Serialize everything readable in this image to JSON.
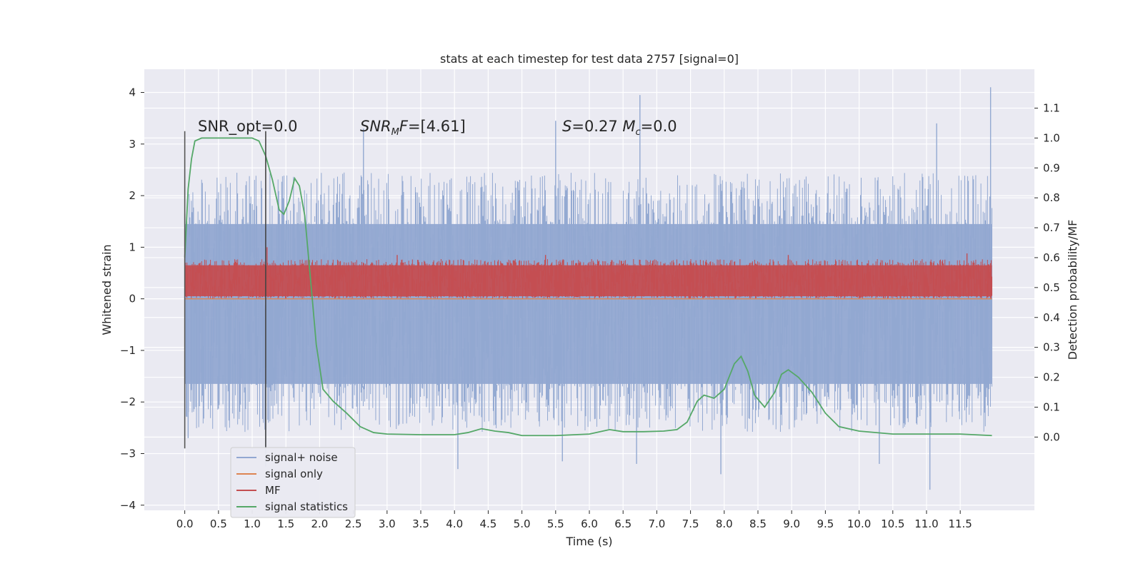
{
  "chart_data": {
    "type": "line",
    "title": "stats at each timestep for test data 2757 [signal=0]",
    "xlabel": "Time (s)",
    "ylabel": "Whitened strain",
    "y2label": "Detection probability/MF",
    "xlim": [
      -0.6,
      12.6
    ],
    "ylim": [
      -4.1,
      4.45
    ],
    "y2lim": [
      -0.245,
      1.23
    ],
    "x_ticks": [
      0.0,
      0.5,
      1.0,
      1.5,
      2.0,
      2.5,
      3.0,
      3.5,
      4.0,
      4.5,
      5.0,
      5.5,
      6.0,
      6.5,
      7.0,
      7.5,
      8.0,
      8.5,
      9.0,
      9.5,
      10.0,
      10.5,
      11.0,
      11.5
    ],
    "x_tick_labels": [
      "0.0",
      "0.5",
      "1.0",
      "1.5",
      "2.0",
      "2.5",
      "3.0",
      "3.5",
      "4.0",
      "4.5",
      "5.0",
      "5.5",
      "6.0",
      "6.5",
      "7.0",
      "7.5",
      "8.0",
      "8.5",
      "9.0",
      "9.5",
      "10.0",
      "10.5",
      "11.0",
      "11.5"
    ],
    "y_ticks": [
      4,
      3,
      2,
      1,
      0,
      -1,
      -2,
      -3,
      -4
    ],
    "y_tick_labels": [
      "4",
      "3",
      "2",
      "1",
      "0",
      "−1",
      "−2",
      "−3",
      "−4"
    ],
    "y2_ticks": [
      1.1,
      1.0,
      0.9,
      0.8,
      0.7,
      0.6,
      0.5,
      0.4,
      0.3,
      0.2,
      0.1,
      0.0
    ],
    "y2_tick_labels": [
      "1.1",
      "1.0",
      "0.9",
      "0.8",
      "0.7",
      "0.6",
      "0.5",
      "0.4",
      "0.3",
      "0.2",
      "0.1",
      "0.0"
    ],
    "grid": true,
    "legend_position": "lower-left",
    "background": "#eaeaf2",
    "annotations": [
      {
        "text": "SNR_opt=0.0",
        "x": 0.2,
        "y": 3.3
      },
      {
        "text": "SNR_MF=[4.61]",
        "x": 2.6,
        "y": 3.3
      },
      {
        "text": "S=0.27   M_c=0.0",
        "x": 5.6,
        "y": 3.3
      }
    ],
    "vertical_markers": [
      {
        "x": 0.0,
        "y_range": [
          -2.9,
          3.25
        ],
        "color": "#555555"
      },
      {
        "x": 1.2,
        "y_range": [
          -2.9,
          3.25
        ],
        "color": "#444444"
      }
    ],
    "series": [
      {
        "name": "signal+ noise",
        "axis": "left",
        "color": "#92a8d1",
        "kind": "noise-band",
        "x_range": [
          0.0,
          11.97
        ],
        "core_range": [
          -1.65,
          1.45
        ],
        "peak_points": [
          [
            0.0,
            1.65
          ],
          [
            0.05,
            -2.7
          ],
          [
            1.2,
            -3.25
          ],
          [
            2.65,
            3.3
          ],
          [
            4.05,
            -3.3
          ],
          [
            5.5,
            3.45
          ],
          [
            5.6,
            -3.15
          ],
          [
            6.75,
            3.95
          ],
          [
            6.7,
            -3.2
          ],
          [
            7.95,
            -3.4
          ],
          [
            10.3,
            -3.2
          ],
          [
            11.05,
            -3.7
          ],
          [
            11.15,
            3.4
          ],
          [
            11.95,
            4.1
          ]
        ]
      },
      {
        "name": "signal only",
        "axis": "left",
        "color": "#dd8452",
        "points": [
          [
            0.0,
            0.0
          ],
          [
            11.97,
            0.0
          ]
        ]
      },
      {
        "name": "MF",
        "axis": "left",
        "color": "#c44e52",
        "kind": "noise-band",
        "x_range": [
          0.0,
          11.97
        ],
        "core_range": [
          0.05,
          0.65
        ],
        "peak_points": [
          [
            1.22,
            1.0
          ],
          [
            3.15,
            0.85
          ],
          [
            5.35,
            0.85
          ],
          [
            8.95,
            0.85
          ],
          [
            11.6,
            0.88
          ]
        ]
      },
      {
        "name": "signal statistics",
        "axis": "right",
        "color": "#55a868",
        "points": [
          [
            0.0,
            0.6
          ],
          [
            0.05,
            0.83
          ],
          [
            0.1,
            0.93
          ],
          [
            0.15,
            0.99
          ],
          [
            0.25,
            1.0
          ],
          [
            0.6,
            1.0
          ],
          [
            0.9,
            1.0
          ],
          [
            1.0,
            1.0
          ],
          [
            1.1,
            0.99
          ],
          [
            1.2,
            0.94
          ],
          [
            1.3,
            0.86
          ],
          [
            1.4,
            0.76
          ],
          [
            1.47,
            0.745
          ],
          [
            1.55,
            0.79
          ],
          [
            1.63,
            0.865
          ],
          [
            1.7,
            0.84
          ],
          [
            1.78,
            0.74
          ],
          [
            1.88,
            0.49
          ],
          [
            1.95,
            0.31
          ],
          [
            2.05,
            0.16
          ],
          [
            2.2,
            0.12
          ],
          [
            2.4,
            0.08
          ],
          [
            2.6,
            0.035
          ],
          [
            2.8,
            0.015
          ],
          [
            3.0,
            0.01
          ],
          [
            3.5,
            0.008
          ],
          [
            4.0,
            0.008
          ],
          [
            4.2,
            0.015
          ],
          [
            4.4,
            0.028
          ],
          [
            4.6,
            0.02
          ],
          [
            4.8,
            0.015
          ],
          [
            5.0,
            0.005
          ],
          [
            5.5,
            0.005
          ],
          [
            6.0,
            0.01
          ],
          [
            6.3,
            0.025
          ],
          [
            6.5,
            0.018
          ],
          [
            6.8,
            0.018
          ],
          [
            7.1,
            0.02
          ],
          [
            7.3,
            0.025
          ],
          [
            7.45,
            0.05
          ],
          [
            7.6,
            0.12
          ],
          [
            7.7,
            0.14
          ],
          [
            7.85,
            0.13
          ],
          [
            8.0,
            0.16
          ],
          [
            8.15,
            0.245
          ],
          [
            8.25,
            0.27
          ],
          [
            8.35,
            0.22
          ],
          [
            8.45,
            0.14
          ],
          [
            8.6,
            0.1
          ],
          [
            8.75,
            0.15
          ],
          [
            8.85,
            0.21
          ],
          [
            8.95,
            0.225
          ],
          [
            9.1,
            0.2
          ],
          [
            9.3,
            0.15
          ],
          [
            9.5,
            0.08
          ],
          [
            9.7,
            0.035
          ],
          [
            10.0,
            0.02
          ],
          [
            10.5,
            0.01
          ],
          [
            11.0,
            0.01
          ],
          [
            11.5,
            0.01
          ],
          [
            11.97,
            0.005
          ]
        ]
      }
    ]
  }
}
